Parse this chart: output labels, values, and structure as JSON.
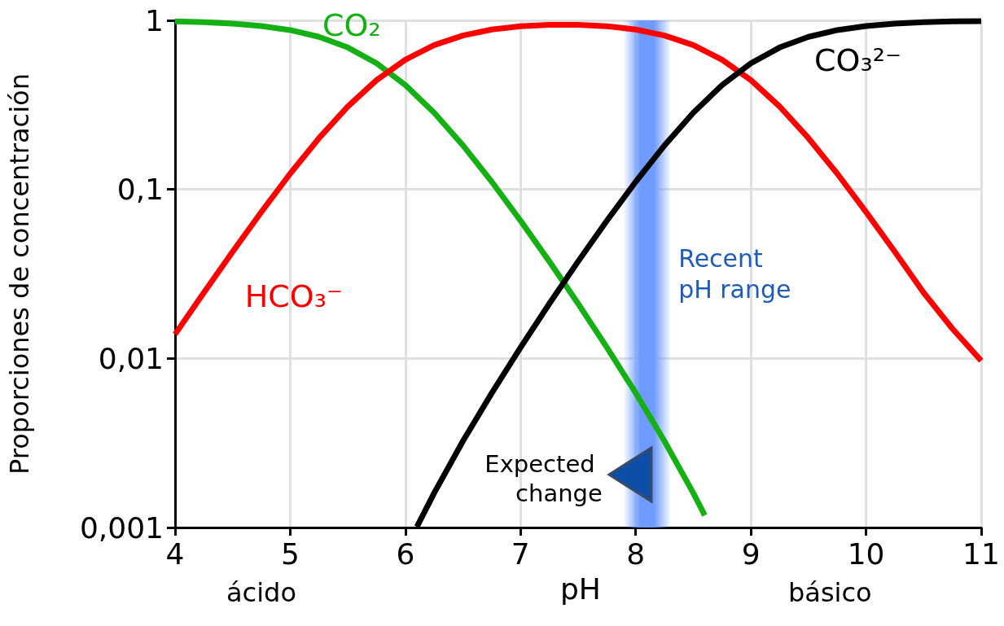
{
  "chart_data": {
    "type": "line",
    "xlabel": "pH",
    "ylabel": "Proporciones de concentración",
    "log": "y",
    "grid": true,
    "legend": false,
    "marker": "none",
    "line_style": "solid",
    "xlim": [
      4,
      11
    ],
    "xticks": [
      4,
      5,
      6,
      7,
      8,
      9,
      10,
      11
    ],
    "ylim": [
      0.001,
      1
    ],
    "yticks": [
      {
        "value": 0.001,
        "label": "0,001"
      },
      {
        "value": 0.01,
        "label": "0,01"
      },
      {
        "value": 0.1,
        "label": "0,1"
      },
      1
    ],
    "series": [
      {
        "name": "CO₂",
        "color": "#14b014",
        "x": [
          4,
          4.25,
          4.5,
          4.75,
          5,
          5.25,
          5.5,
          5.75,
          6,
          6.25,
          6.5,
          6.75,
          7,
          7.25,
          7.5,
          7.75,
          8,
          8.25,
          8.5,
          8.6
        ],
        "values": [
          0.986,
          0.976,
          0.957,
          0.926,
          0.876,
          0.799,
          0.691,
          0.557,
          0.414,
          0.284,
          0.182,
          0.111,
          0.0653,
          0.0375,
          0.0211,
          0.0116,
          0.00625,
          0.00324,
          0.0016,
          0.00118
        ]
      },
      {
        "name": "HCO₃⁻",
        "color": "#ff0000",
        "x": [
          4,
          4.25,
          4.5,
          4.75,
          5,
          5.25,
          5.5,
          5.75,
          6,
          6.25,
          6.5,
          6.75,
          7,
          7.25,
          7.5,
          7.75,
          8,
          8.25,
          8.5,
          8.75,
          9,
          9.25,
          9.5,
          9.75,
          10,
          10.25,
          10.5,
          10.75,
          11
        ],
        "values": [
          0.0139,
          0.0245,
          0.0428,
          0.0736,
          0.124,
          0.201,
          0.309,
          0.443,
          0.585,
          0.714,
          0.814,
          0.883,
          0.923,
          0.942,
          0.941,
          0.923,
          0.883,
          0.814,
          0.714,
          0.585,
          0.443,
          0.309,
          0.201,
          0.124,
          0.0736,
          0.0428,
          0.0245,
          0.015,
          0.0097
        ]
      },
      {
        "name": "CO₃²⁻",
        "color": "#000000",
        "x": [
          6.1,
          6.25,
          6.5,
          6.75,
          7,
          7.25,
          7.5,
          7.75,
          8,
          8.25,
          8.5,
          8.75,
          9,
          9.25,
          9.5,
          9.75,
          10,
          10.25,
          10.5,
          10.75,
          11
        ],
        "values": [
          0.00101,
          0.0016,
          0.00325,
          0.00624,
          0.0116,
          0.0211,
          0.0375,
          0.0653,
          0.111,
          0.182,
          0.284,
          0.414,
          0.557,
          0.691,
          0.799,
          0.876,
          0.926,
          0.957,
          0.976,
          0.986,
          0.99
        ]
      }
    ],
    "bands": [
      {
        "axis": "x",
        "from": 7.9,
        "to": 8.3,
        "label": "Recent pH range",
        "color": "#6f9bff"
      }
    ],
    "annotations": [
      "ácido",
      "Expected change",
      "básico"
    ]
  }
}
